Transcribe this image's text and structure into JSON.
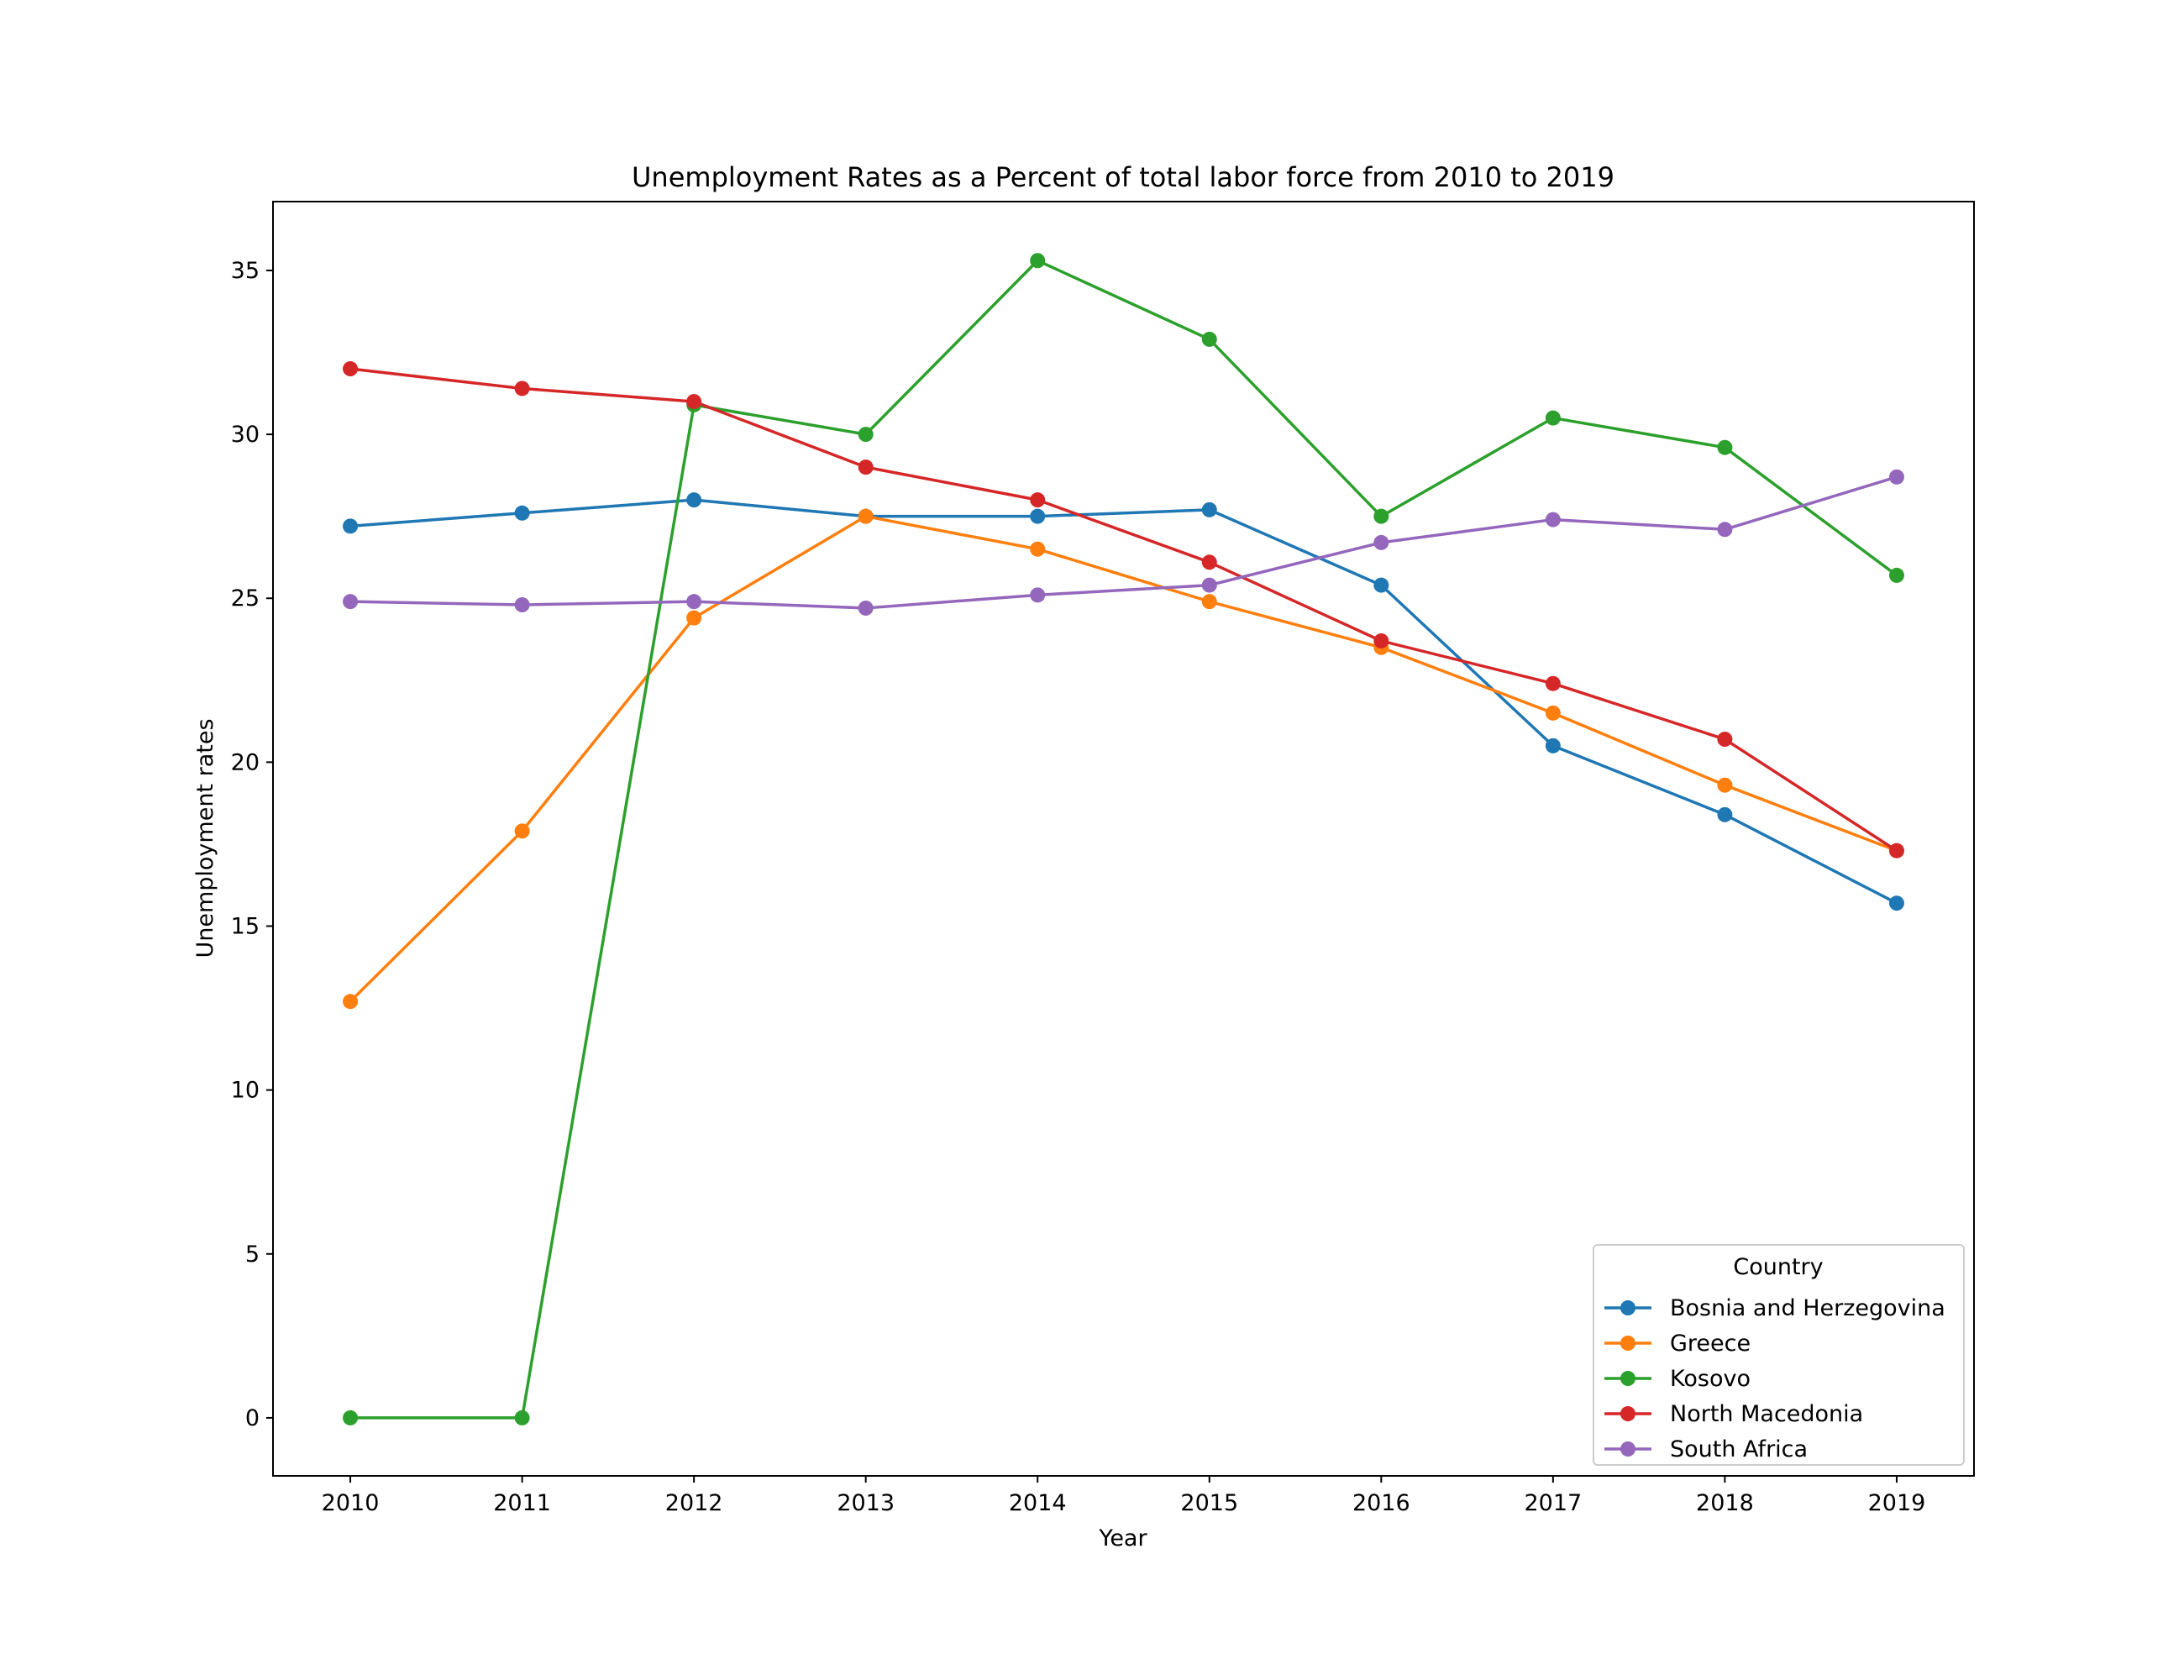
{
  "chart_data": {
    "type": "line",
    "title": "Unemployment Rates as a Percent of total labor force from 2010 to 2019",
    "xlabel": "Year",
    "ylabel": "Unemployment rates",
    "x": [
      2010,
      2011,
      2012,
      2013,
      2014,
      2015,
      2016,
      2017,
      2018,
      2019
    ],
    "x_tick_labels": [
      "2010",
      "2011",
      "2012",
      "2013",
      "2014",
      "2015",
      "2016",
      "2017",
      "2018",
      "2019"
    ],
    "y_ticks": [
      0,
      5,
      10,
      15,
      20,
      25,
      30,
      35
    ],
    "y_tick_labels": [
      "0",
      "5",
      "10",
      "15",
      "20",
      "25",
      "30",
      "35"
    ],
    "xlim": [
      2009.55,
      2019.45
    ],
    "ylim": [
      -1.77,
      37.1
    ],
    "grid": false,
    "legend": {
      "title": "Country",
      "location": "lower-right"
    },
    "series": [
      {
        "name": "Bosnia and Herzegovina",
        "color": "#1f77b4",
        "values": [
          27.2,
          27.6,
          28.0,
          27.5,
          27.5,
          27.7,
          25.4,
          20.5,
          18.4,
          15.7
        ]
      },
      {
        "name": "Greece",
        "color": "#ff7f0e",
        "values": [
          12.7,
          17.9,
          24.4,
          27.5,
          26.5,
          24.9,
          23.5,
          21.5,
          19.3,
          17.3
        ]
      },
      {
        "name": "Kosovo",
        "color": "#2ca02c",
        "values": [
          0.0,
          0.0,
          30.9,
          30.0,
          35.3,
          32.9,
          27.5,
          30.5,
          29.6,
          25.7
        ]
      },
      {
        "name": "North Macedonia",
        "color": "#d62728",
        "values": [
          32.0,
          31.4,
          31.0,
          29.0,
          28.0,
          26.1,
          23.7,
          22.4,
          20.7,
          17.3
        ]
      },
      {
        "name": "South Africa",
        "color": "#9467bd",
        "values": [
          24.9,
          24.8,
          24.9,
          24.7,
          25.1,
          25.4,
          26.7,
          27.4,
          27.1,
          28.7
        ]
      }
    ]
  }
}
